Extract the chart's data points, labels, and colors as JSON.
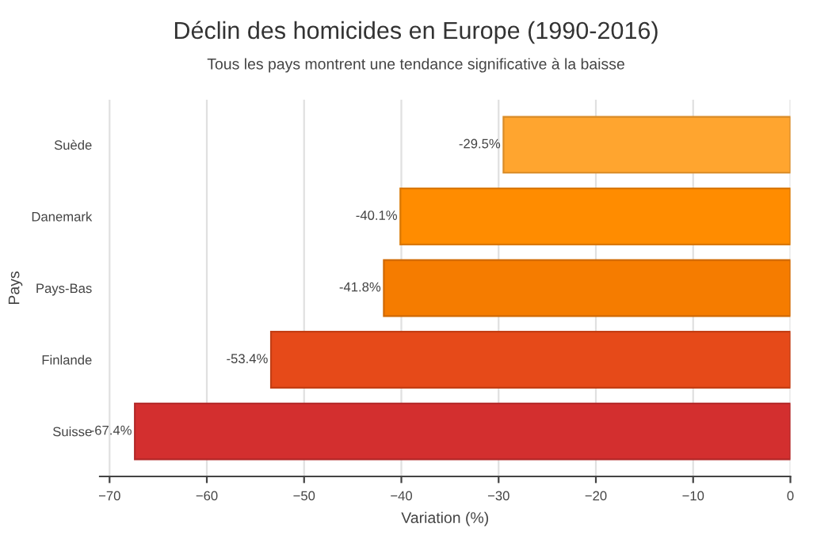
{
  "chart_data": {
    "type": "bar",
    "orientation": "horizontal",
    "title": "Déclin des homicides en Europe (1990-2016)",
    "subtitle": "Tous les pays montrent une tendance significative à la baisse",
    "xlabel": "Variation (%)",
    "ylabel": "Pays",
    "categories": [
      "Suède",
      "Danemark",
      "Pays-Bas",
      "Finlande",
      "Suisse"
    ],
    "values": [
      -29.5,
      -40.1,
      -41.8,
      -53.4,
      -67.4
    ],
    "colors": [
      "#ffa52f",
      "#ff8c00",
      "#f57c00",
      "#e64a19",
      "#d32f2f"
    ],
    "value_labels": [
      "-29.5%",
      "-40.1%",
      "-41.8%",
      "-53.4%",
      "-67.4%"
    ],
    "xlim": [
      -71,
      0
    ],
    "xticks": [
      {
        "value": -70,
        "label": "−70"
      },
      {
        "value": -60,
        "label": "−60"
      },
      {
        "value": -50,
        "label": "−50"
      },
      {
        "value": -40,
        "label": "−40"
      },
      {
        "value": -30,
        "label": "−30"
      },
      {
        "value": -20,
        "label": "−20"
      },
      {
        "value": -10,
        "label": "−10"
      },
      0
    ],
    "grid": "x",
    "legend": false
  }
}
